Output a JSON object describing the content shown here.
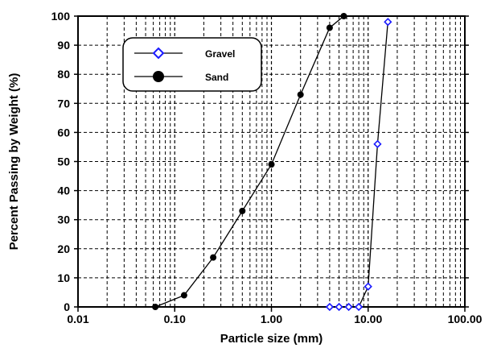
{
  "chart_data": {
    "type": "line",
    "xlabel": "Particle size (mm)",
    "ylabel": "Percent Passing by Weight (%)",
    "x_scale": "log",
    "xlim": [
      0.01,
      100
    ],
    "ylim": [
      0,
      100
    ],
    "x_ticks": [
      {
        "value": 0.01,
        "label": "0.01"
      },
      {
        "value": 0.1,
        "label": "0.10"
      },
      {
        "value": 1,
        "label": "1.00"
      },
      {
        "value": 10,
        "label": "10.00"
      },
      {
        "value": 100,
        "label": "100.00"
      }
    ],
    "y_ticks": [
      0,
      10,
      20,
      30,
      40,
      50,
      60,
      70,
      80,
      90,
      100
    ],
    "grid": true,
    "legend_position": "top-left",
    "series": [
      {
        "name": "Gravel",
        "color": "#1a1aff",
        "marker": "open-diamond",
        "x": [
          4.0,
          5.0,
          6.3,
          8.0,
          10.0,
          12.5,
          16.0
        ],
        "y": [
          0,
          0,
          0,
          0,
          7,
          56,
          98
        ]
      },
      {
        "name": "Sand",
        "color": "#000000",
        "marker": "filled-circle",
        "x": [
          0.063,
          0.125,
          0.25,
          0.5,
          1.0,
          2.0,
          4.0,
          5.6
        ],
        "y": [
          0,
          4,
          17,
          33,
          49,
          73,
          96,
          100
        ]
      }
    ]
  }
}
